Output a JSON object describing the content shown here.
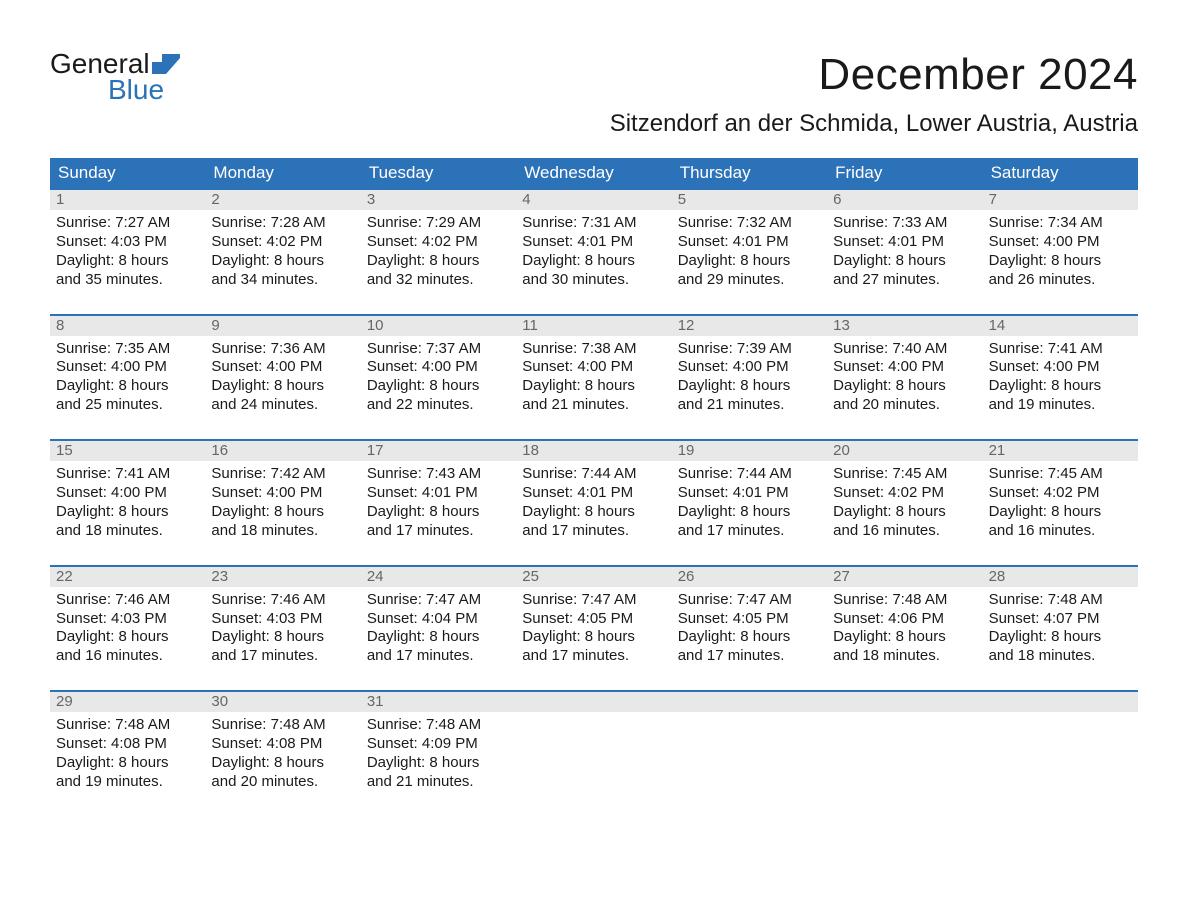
{
  "logo": {
    "text_top": "General",
    "text_bottom": "Blue",
    "icon_color": "#2c72b8"
  },
  "title": "December 2024",
  "location": "Sitzendorf an der Schmida, Lower Austria, Austria",
  "colors": {
    "header_bg": "#2c72b8",
    "header_text": "#ffffff",
    "daynum_bg": "#e8e8e8",
    "daynum_text": "#666666",
    "body_text": "#1a1a1a",
    "rule": "#2c72b8"
  },
  "weekdays": [
    "Sunday",
    "Monday",
    "Tuesday",
    "Wednesday",
    "Thursday",
    "Friday",
    "Saturday"
  ],
  "weeks": [
    [
      {
        "n": "1",
        "sunrise": "7:27 AM",
        "sunset": "4:03 PM",
        "dl1": "Daylight: 8 hours",
        "dl2": "and 35 minutes."
      },
      {
        "n": "2",
        "sunrise": "7:28 AM",
        "sunset": "4:02 PM",
        "dl1": "Daylight: 8 hours",
        "dl2": "and 34 minutes."
      },
      {
        "n": "3",
        "sunrise": "7:29 AM",
        "sunset": "4:02 PM",
        "dl1": "Daylight: 8 hours",
        "dl2": "and 32 minutes."
      },
      {
        "n": "4",
        "sunrise": "7:31 AM",
        "sunset": "4:01 PM",
        "dl1": "Daylight: 8 hours",
        "dl2": "and 30 minutes."
      },
      {
        "n": "5",
        "sunrise": "7:32 AM",
        "sunset": "4:01 PM",
        "dl1": "Daylight: 8 hours",
        "dl2": "and 29 minutes."
      },
      {
        "n": "6",
        "sunrise": "7:33 AM",
        "sunset": "4:01 PM",
        "dl1": "Daylight: 8 hours",
        "dl2": "and 27 minutes."
      },
      {
        "n": "7",
        "sunrise": "7:34 AM",
        "sunset": "4:00 PM",
        "dl1": "Daylight: 8 hours",
        "dl2": "and 26 minutes."
      }
    ],
    [
      {
        "n": "8",
        "sunrise": "7:35 AM",
        "sunset": "4:00 PM",
        "dl1": "Daylight: 8 hours",
        "dl2": "and 25 minutes."
      },
      {
        "n": "9",
        "sunrise": "7:36 AM",
        "sunset": "4:00 PM",
        "dl1": "Daylight: 8 hours",
        "dl2": "and 24 minutes."
      },
      {
        "n": "10",
        "sunrise": "7:37 AM",
        "sunset": "4:00 PM",
        "dl1": "Daylight: 8 hours",
        "dl2": "and 22 minutes."
      },
      {
        "n": "11",
        "sunrise": "7:38 AM",
        "sunset": "4:00 PM",
        "dl1": "Daylight: 8 hours",
        "dl2": "and 21 minutes."
      },
      {
        "n": "12",
        "sunrise": "7:39 AM",
        "sunset": "4:00 PM",
        "dl1": "Daylight: 8 hours",
        "dl2": "and 21 minutes."
      },
      {
        "n": "13",
        "sunrise": "7:40 AM",
        "sunset": "4:00 PM",
        "dl1": "Daylight: 8 hours",
        "dl2": "and 20 minutes."
      },
      {
        "n": "14",
        "sunrise": "7:41 AM",
        "sunset": "4:00 PM",
        "dl1": "Daylight: 8 hours",
        "dl2": "and 19 minutes."
      }
    ],
    [
      {
        "n": "15",
        "sunrise": "7:41 AM",
        "sunset": "4:00 PM",
        "dl1": "Daylight: 8 hours",
        "dl2": "and 18 minutes."
      },
      {
        "n": "16",
        "sunrise": "7:42 AM",
        "sunset": "4:00 PM",
        "dl1": "Daylight: 8 hours",
        "dl2": "and 18 minutes."
      },
      {
        "n": "17",
        "sunrise": "7:43 AM",
        "sunset": "4:01 PM",
        "dl1": "Daylight: 8 hours",
        "dl2": "and 17 minutes."
      },
      {
        "n": "18",
        "sunrise": "7:44 AM",
        "sunset": "4:01 PM",
        "dl1": "Daylight: 8 hours",
        "dl2": "and 17 minutes."
      },
      {
        "n": "19",
        "sunrise": "7:44 AM",
        "sunset": "4:01 PM",
        "dl1": "Daylight: 8 hours",
        "dl2": "and 17 minutes."
      },
      {
        "n": "20",
        "sunrise": "7:45 AM",
        "sunset": "4:02 PM",
        "dl1": "Daylight: 8 hours",
        "dl2": "and 16 minutes."
      },
      {
        "n": "21",
        "sunrise": "7:45 AM",
        "sunset": "4:02 PM",
        "dl1": "Daylight: 8 hours",
        "dl2": "and 16 minutes."
      }
    ],
    [
      {
        "n": "22",
        "sunrise": "7:46 AM",
        "sunset": "4:03 PM",
        "dl1": "Daylight: 8 hours",
        "dl2": "and 16 minutes."
      },
      {
        "n": "23",
        "sunrise": "7:46 AM",
        "sunset": "4:03 PM",
        "dl1": "Daylight: 8 hours",
        "dl2": "and 17 minutes."
      },
      {
        "n": "24",
        "sunrise": "7:47 AM",
        "sunset": "4:04 PM",
        "dl1": "Daylight: 8 hours",
        "dl2": "and 17 minutes."
      },
      {
        "n": "25",
        "sunrise": "7:47 AM",
        "sunset": "4:05 PM",
        "dl1": "Daylight: 8 hours",
        "dl2": "and 17 minutes."
      },
      {
        "n": "26",
        "sunrise": "7:47 AM",
        "sunset": "4:05 PM",
        "dl1": "Daylight: 8 hours",
        "dl2": "and 17 minutes."
      },
      {
        "n": "27",
        "sunrise": "7:48 AM",
        "sunset": "4:06 PM",
        "dl1": "Daylight: 8 hours",
        "dl2": "and 18 minutes."
      },
      {
        "n": "28",
        "sunrise": "7:48 AM",
        "sunset": "4:07 PM",
        "dl1": "Daylight: 8 hours",
        "dl2": "and 18 minutes."
      }
    ],
    [
      {
        "n": "29",
        "sunrise": "7:48 AM",
        "sunset": "4:08 PM",
        "dl1": "Daylight: 8 hours",
        "dl2": "and 19 minutes."
      },
      {
        "n": "30",
        "sunrise": "7:48 AM",
        "sunset": "4:08 PM",
        "dl1": "Daylight: 8 hours",
        "dl2": "and 20 minutes."
      },
      {
        "n": "31",
        "sunrise": "7:48 AM",
        "sunset": "4:09 PM",
        "dl1": "Daylight: 8 hours",
        "dl2": "and 21 minutes."
      },
      null,
      null,
      null,
      null
    ]
  ],
  "labels": {
    "sunrise_prefix": "Sunrise: ",
    "sunset_prefix": "Sunset: "
  }
}
